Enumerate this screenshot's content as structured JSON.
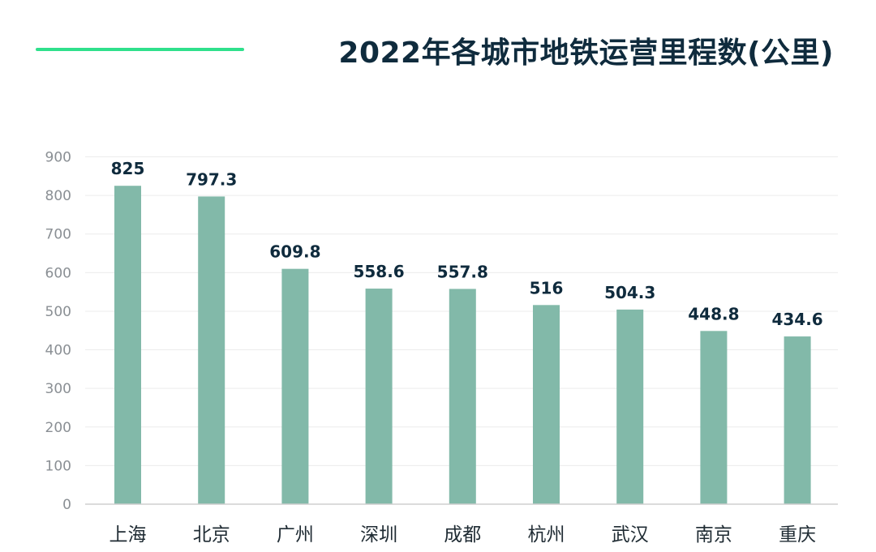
{
  "header": {
    "title": "2022年各城市地铁运营里程数(公里)"
  },
  "colors": {
    "accent_line": "#2fe08c",
    "bar": "#82b9a9",
    "grid": "#ececec",
    "axis": "#cfcfcf",
    "title": "#0f2b3d"
  },
  "chart_data": {
    "type": "bar",
    "title": "2022年各城市地铁运营里程数(公里)",
    "categories": [
      "上海",
      "北京",
      "广州",
      "深圳",
      "成都",
      "杭州",
      "武汉",
      "南京",
      "重庆"
    ],
    "values": [
      825,
      797.3,
      609.8,
      558.6,
      557.8,
      516,
      504.3,
      448.8,
      434.6
    ],
    "value_labels": [
      "825",
      "797.3",
      "609.8",
      "558.6",
      "557.8",
      "516",
      "504.3",
      "448.8",
      "434.6"
    ],
    "yticks": [
      "0",
      "100",
      "200",
      "300",
      "400",
      "500",
      "600",
      "700",
      "800",
      "900"
    ],
    "ylim": [
      0,
      900
    ],
    "xlabel": "",
    "ylabel": "",
    "grid": true,
    "legend": "none"
  }
}
